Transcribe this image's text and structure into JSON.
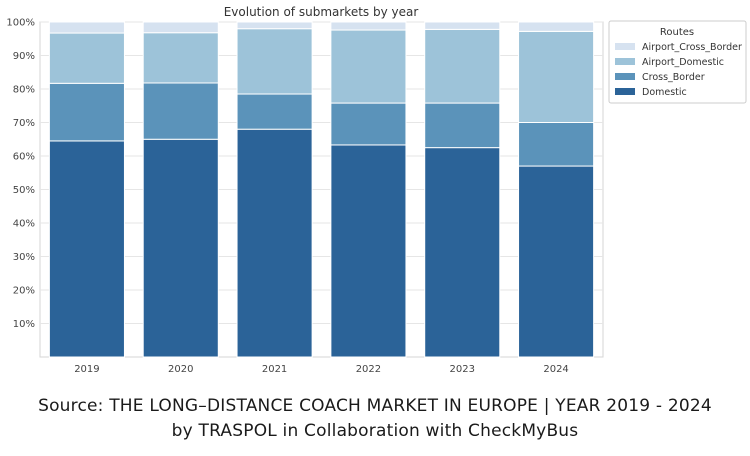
{
  "chart_data": {
    "type": "bar",
    "stacked": true,
    "percent": true,
    "title": "Evolution of submarkets by year",
    "categories": [
      "2019",
      "2020",
      "2021",
      "2022",
      "2023",
      "2024"
    ],
    "series": [
      {
        "name": "Domestic",
        "color": "#2b6398",
        "values": [
          64.5,
          65,
          68,
          63.3,
          62.5,
          57
        ]
      },
      {
        "name": "Cross_Border",
        "color": "#5b93ba",
        "values": [
          17.2,
          16.8,
          10.5,
          12.5,
          13.3,
          13
        ]
      },
      {
        "name": "Airport_Domestic",
        "color": "#9dc3d9",
        "values": [
          15,
          15,
          19.5,
          21.8,
          22,
          27.2
        ]
      },
      {
        "name": "Airport_Cross_Border",
        "color": "#d6e2f0",
        "values": [
          3.3,
          3.2,
          2,
          2.4,
          2.2,
          2.8
        ]
      }
    ],
    "ylim": [
      0,
      100
    ],
    "yticks": [
      "10%",
      "20%",
      "30%",
      "40%",
      "50%",
      "60%",
      "70%",
      "80%",
      "90%",
      "100%"
    ],
    "grid": true,
    "legend": {
      "title": "Routes",
      "placement": "outside-top-right",
      "order": [
        "Airport_Cross_Border",
        "Airport_Domestic",
        "Cross_Border",
        "Domestic"
      ]
    }
  },
  "caption": {
    "line1": "Source: THE LONG–DISTANCE COACH MARKET IN EUROPE | YEAR 2019 - 2024",
    "line2": "by TRASPOL in Collaboration with CheckMyBus"
  }
}
